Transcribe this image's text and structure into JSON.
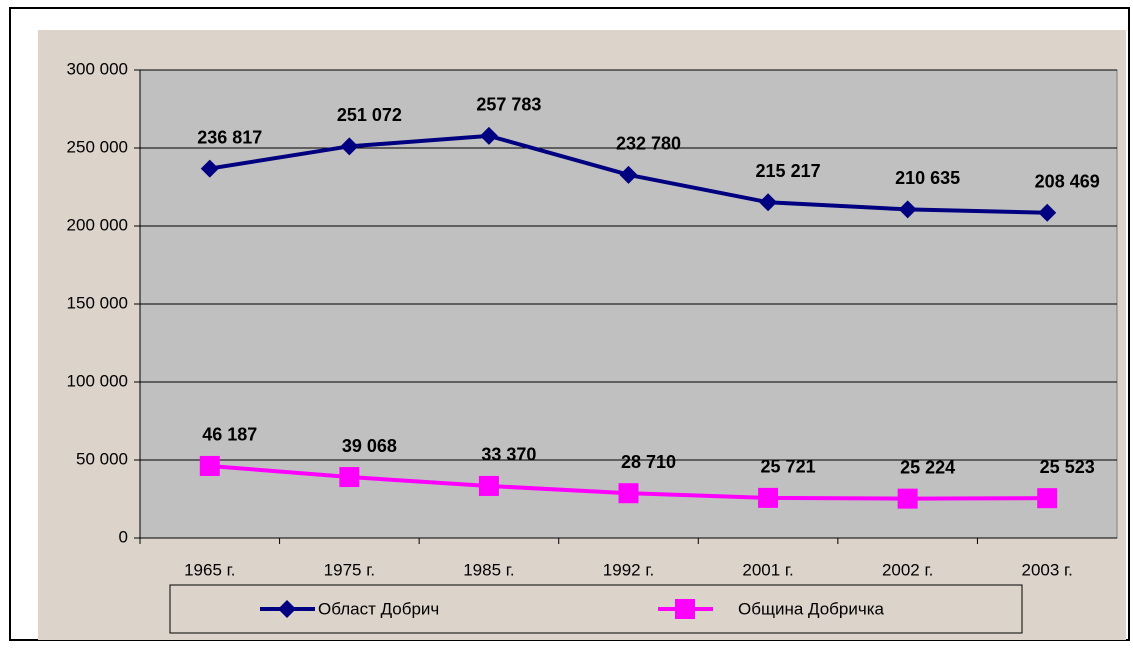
{
  "chart_data": {
    "type": "line",
    "categories": [
      "1965 г.",
      "1975 г.",
      "1985 г.",
      "1992 г.",
      "2001 г.",
      "2002 г.",
      "2003 г."
    ],
    "series": [
      {
        "name": "Област Добрич",
        "color": "#000080",
        "marker": "diamond",
        "values": [
          236817,
          251072,
          257783,
          232780,
          215217,
          210635,
          208469
        ],
        "value_labels": [
          "236 817",
          "251 072",
          "257 783",
          "232 780",
          "215 217",
          "210 635",
          "208 469"
        ]
      },
      {
        "name": "Община Добричка",
        "color": "#ff00ff",
        "marker": "square",
        "values": [
          46187,
          39068,
          33370,
          28710,
          25721,
          25224,
          25523
        ],
        "value_labels": [
          "46 187",
          "39 068",
          "33 370",
          "28 710",
          "25 721",
          "25 224",
          "25 523"
        ]
      }
    ],
    "ylim": [
      0,
      300000
    ],
    "yticks": [
      0,
      {
        "value": 50000,
        "label": "50 000"
      },
      {
        "value": 100000,
        "label": "100 000"
      },
      {
        "value": 150000,
        "label": "150 000"
      },
      {
        "value": 200000,
        "label": "200 000"
      },
      {
        "value": 250000,
        "label": "250 000"
      },
      {
        "value": 300000,
        "label": "300 000"
      }
    ],
    "grid": true,
    "legend": "bottom"
  }
}
